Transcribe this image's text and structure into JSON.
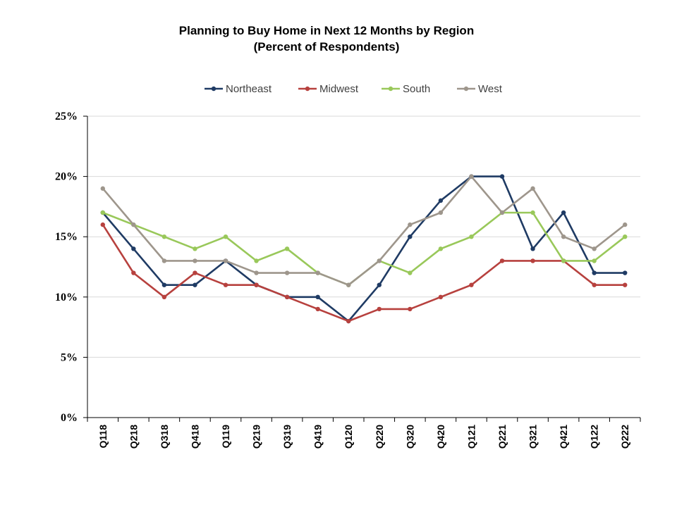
{
  "chart_data": {
    "type": "line",
    "title": "Planning to Buy Home in Next 12 Months by Region",
    "subtitle": "(Percent of Respondents)",
    "categories": [
      "Q118",
      "Q218",
      "Q318",
      "Q418",
      "Q119",
      "Q219",
      "Q319",
      "Q419",
      "Q120",
      "Q220",
      "Q320",
      "Q420",
      "Q121",
      "Q221",
      "Q321",
      "Q421",
      "Q122",
      "Q222"
    ],
    "series": [
      {
        "name": "Northeast",
        "color": "#1f3b64",
        "values": [
          17,
          14,
          11,
          11,
          13,
          11,
          10,
          10,
          8,
          11,
          15,
          18,
          20,
          20,
          14,
          17,
          12,
          12
        ]
      },
      {
        "name": "Midwest",
        "color": "#b7413e",
        "values": [
          16,
          12,
          10,
          12,
          11,
          11,
          10,
          9,
          8,
          9,
          9,
          10,
          11,
          13,
          13,
          13,
          11,
          11
        ]
      },
      {
        "name": "South",
        "color": "#99c85a",
        "values": [
          17,
          16,
          15,
          14,
          15,
          13,
          14,
          12,
          11,
          13,
          12,
          14,
          15,
          17,
          17,
          13,
          13,
          15
        ]
      },
      {
        "name": "West",
        "color": "#9e968c",
        "values": [
          19,
          16,
          13,
          13,
          13,
          12,
          12,
          12,
          11,
          13,
          16,
          17,
          20,
          17,
          19,
          15,
          14,
          16
        ]
      }
    ],
    "ylim": [
      0,
      25
    ],
    "yticks": [
      "0%",
      "5%",
      "10%",
      "15%",
      "20%",
      "25%"
    ],
    "ytick_values": [
      0,
      5,
      10,
      15,
      20,
      25
    ],
    "xlabel": "",
    "ylabel": "",
    "grid": true,
    "legend_position": "top"
  }
}
